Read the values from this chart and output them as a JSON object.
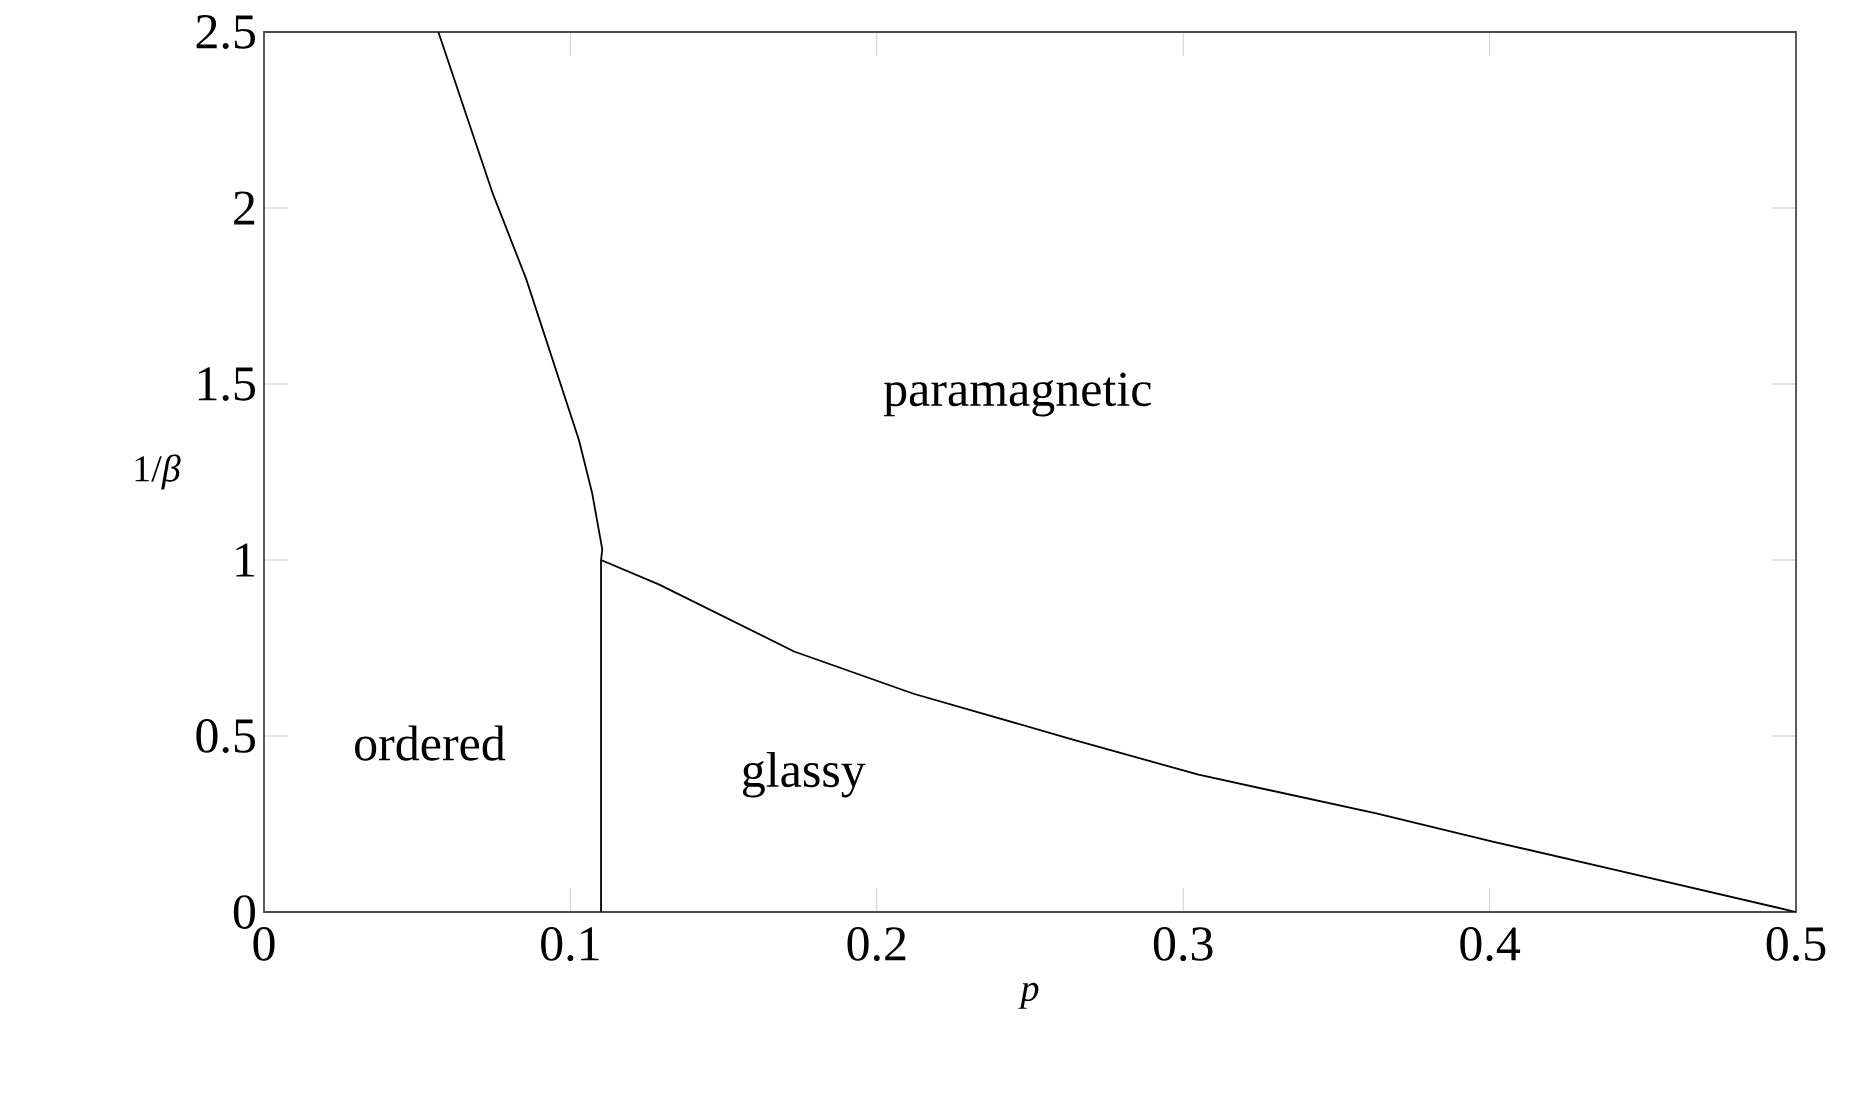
{
  "chart_data": {
    "type": "line",
    "xlabel": "*p*",
    "ylabel": "1/*β*",
    "annotations": [
      "paramagnetic",
      "ordered",
      "glassy"
    ],
    "series": [
      {
        "color": "#000000",
        "x": [
          0.0569,
          0.0747,
          0.0855,
          0.1028,
          0.1071,
          0.1104,
          0.11,
          0.129,
          0.173,
          0.212,
          0.264,
          0.305,
          0.363,
          0.401,
          0.441,
          0.5
        ],
        "values": [
          2.5,
          2.04,
          1.8,
          1.34,
          1.19,
          1.03,
          1.0,
          0.93,
          0.74,
          0.62,
          0.49,
          0.39,
          0.28,
          0.2,
          0.12,
          0
        ]
      },
      {
        "color": "#000000",
        "x": [
          0.11,
          0.11
        ],
        "values": [
          0,
          1.0
        ]
      }
    ],
    "xlim": [
      0,
      0.5
    ],
    "ylim": [
      0,
      2.5
    ],
    "xticks": [
      0,
      0.1,
      0.2,
      0.3,
      0.4,
      0.5
    ],
    "yticks": [
      0,
      0.5,
      1,
      1.5,
      2,
      2.5
    ],
    "grid": false,
    "marker": "none",
    "line_style": "solid"
  }
}
